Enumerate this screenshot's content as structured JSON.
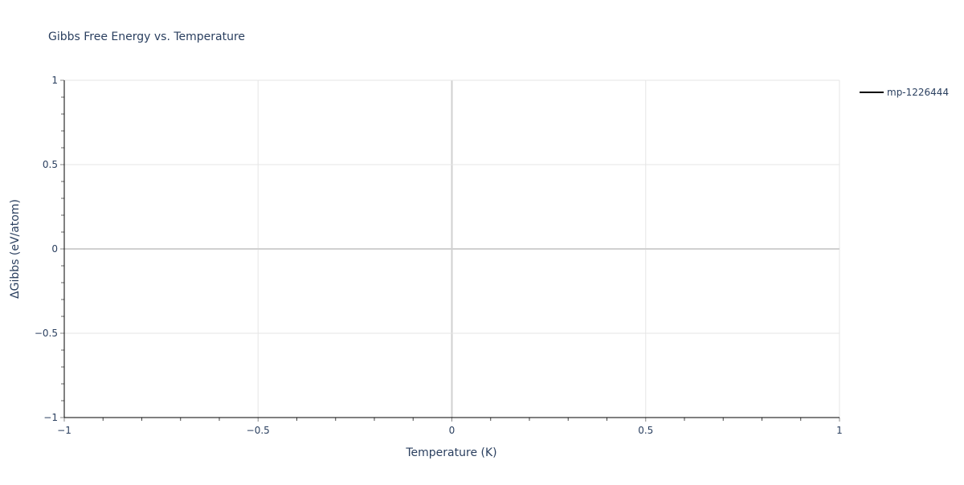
{
  "chart_data": {
    "type": "line",
    "title": "Gibbs Free Energy vs. Temperature",
    "xlabel": "Temperature (K)",
    "ylabel": "ΔGibbs (eV/atom)",
    "xlim": [
      -1,
      1
    ],
    "ylim": [
      -1,
      1
    ],
    "xticks": [
      -1,
      -0.5,
      0,
      0.5,
      1
    ],
    "xtick_labels": [
      "−1",
      "−0.5",
      "0",
      "0.5",
      "1"
    ],
    "yticks": [
      -1,
      -0.5,
      0,
      0.5,
      1
    ],
    "ytick_labels": [
      "−1",
      "−0.5",
      "0",
      "0.5",
      "1"
    ],
    "minor_tick_step": 0.1,
    "grid": true,
    "legend_position": "top-right",
    "series": [
      {
        "name": "mp-1226444",
        "color": "#000000",
        "x": [],
        "y": []
      }
    ]
  }
}
